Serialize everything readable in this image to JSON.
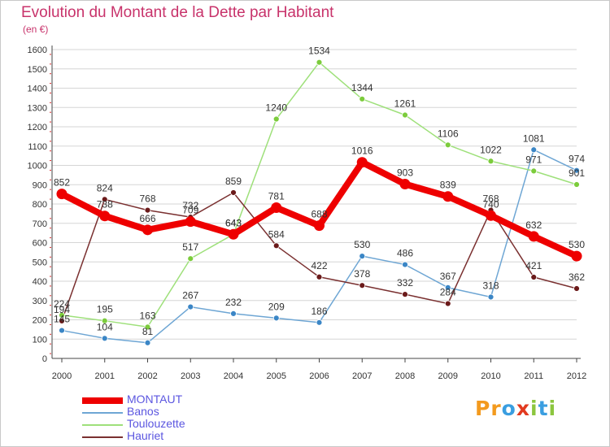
{
  "title": "Evolution du Montant de la Dette par Habitant",
  "subtitle": "(en €)",
  "logo": {
    "text": "Proxiti",
    "letters": [
      "P",
      "r",
      "o",
      "x",
      "i",
      "t",
      "i"
    ],
    "colors": [
      "#f39a1e",
      "#f39a1e",
      "#3a9ee0",
      "#e23a1f",
      "#8cc63f",
      "#3a9ee0",
      "#8cc63f"
    ]
  },
  "chart_data": {
    "type": "line",
    "title": "Evolution du Montant de la Dette par Habitant",
    "subtitle": "(en €)",
    "xlabel": "",
    "ylabel": "",
    "x": [
      "2000",
      "2001",
      "2002",
      "2003",
      "2004",
      "2005",
      "2006",
      "2007",
      "2008",
      "2009",
      "2010",
      "2011",
      "2012"
    ],
    "ylim": [
      0,
      1600
    ],
    "yticks": [
      0,
      100,
      200,
      300,
      400,
      500,
      600,
      700,
      800,
      900,
      1000,
      1100,
      1200,
      1300,
      1400,
      1500,
      1600
    ],
    "grid": "horizontal",
    "legend": "bottom-left",
    "series": [
      {
        "name": "MONTAUT",
        "color": "#ee0000",
        "marker": "#ee0000",
        "width": 8,
        "values": [
          852,
          738,
          666,
          709,
          643,
          781,
          688,
          1016,
          903,
          839,
          740,
          632,
          530
        ]
      },
      {
        "name": "Banos",
        "color": "#6ea6d4",
        "marker": "#3b86c6",
        "width": 1.5,
        "values": [
          145,
          104,
          81,
          267,
          232,
          209,
          186,
          530,
          486,
          367,
          318,
          1081,
          974
        ]
      },
      {
        "name": "Toulouzette",
        "color": "#9ee07a",
        "marker": "#7ccc3c",
        "width": 1.5,
        "values": [
          224,
          195,
          163,
          517,
          643,
          1240,
          1534,
          1344,
          1261,
          1106,
          1022,
          971,
          901
        ]
      },
      {
        "name": "Hauriet",
        "color": "#7a3030",
        "marker": "#6b1a1a",
        "width": 1.5,
        "values": [
          194,
          824,
          768,
          732,
          859,
          584,
          422,
          378,
          332,
          284,
          768,
          421,
          362
        ]
      }
    ]
  }
}
